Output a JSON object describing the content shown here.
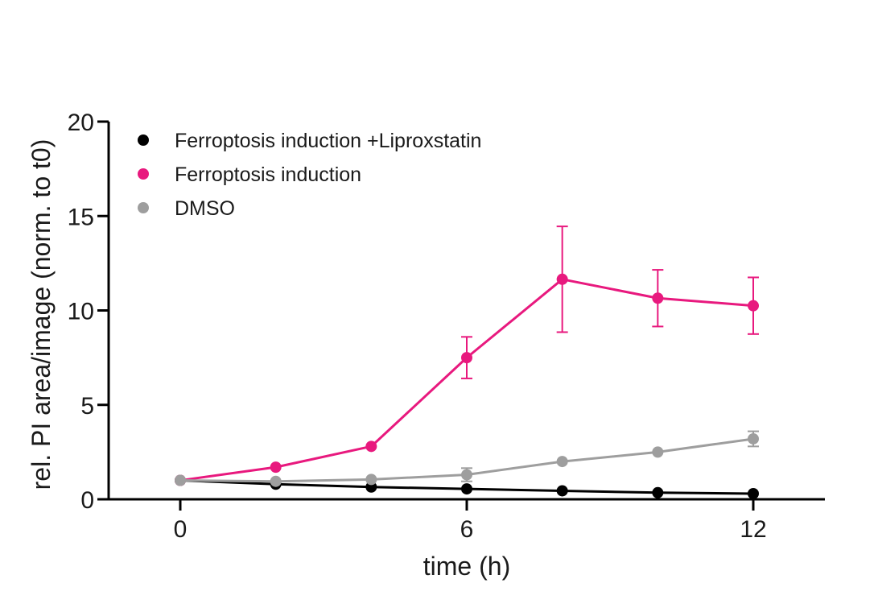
{
  "chart_data": {
    "type": "line",
    "xlabel": "time (h)",
    "ylabel": "rel. PI area/image (norm. to t0)",
    "xlim": [
      -1.5,
      13.5
    ],
    "ylim": [
      0,
      20
    ],
    "x_ticks": [
      0,
      6,
      12
    ],
    "y_ticks": [
      0,
      5,
      10,
      15,
      20
    ],
    "x_tick_labels": [
      "0",
      "6",
      "12"
    ],
    "y_tick_labels": [
      "0",
      "5",
      "10",
      "15",
      "20"
    ],
    "grid": false,
    "legend_position": "top-left",
    "x": [
      0,
      2,
      4,
      6,
      8,
      10,
      12
    ],
    "series": [
      {
        "name": "Ferroptosis induction +Liproxstatin",
        "color": "#000000",
        "values": [
          1.0,
          0.8,
          0.65,
          0.55,
          0.45,
          0.35,
          0.3
        ],
        "errors": [
          0.1,
          0.1,
          0.1,
          0.1,
          0.1,
          0.1,
          0.1
        ]
      },
      {
        "name": "Ferroptosis induction",
        "color": "#e8197e",
        "values": [
          1.0,
          1.7,
          2.8,
          7.5,
          11.65,
          10.65,
          10.25
        ],
        "errors": [
          0.1,
          0.15,
          0.15,
          1.1,
          2.8,
          1.5,
          1.5
        ]
      },
      {
        "name": "DMSO",
        "color": "#9e9e9e",
        "values": [
          1.0,
          0.95,
          1.05,
          1.3,
          2.0,
          2.5,
          3.2
        ],
        "errors": [
          0.1,
          0.1,
          0.15,
          0.35,
          0.1,
          0.15,
          0.4
        ]
      }
    ]
  }
}
